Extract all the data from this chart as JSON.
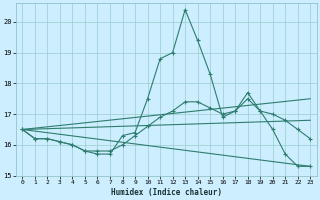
{
  "xlabel": "Humidex (Indice chaleur)",
  "background_color": "#cceeff",
  "grid_color": "#99cccc",
  "line_color": "#2e7d6e",
  "xlim": [
    -0.5,
    23.5
  ],
  "ylim": [
    15.0,
    20.6
  ],
  "yticks": [
    15,
    16,
    17,
    18,
    19,
    20
  ],
  "xticks": [
    0,
    1,
    2,
    3,
    4,
    5,
    6,
    7,
    8,
    9,
    10,
    11,
    12,
    13,
    14,
    15,
    16,
    17,
    18,
    19,
    20,
    21,
    22,
    23
  ],
  "line_spiky": {
    "x": [
      0,
      1,
      2,
      3,
      4,
      5,
      6,
      7,
      8,
      9,
      10,
      11,
      12,
      13,
      14,
      15,
      16,
      17,
      18,
      19,
      20,
      21,
      22,
      23
    ],
    "y": [
      16.5,
      16.2,
      16.2,
      16.1,
      16.0,
      15.8,
      15.7,
      15.7,
      16.3,
      16.4,
      17.5,
      18.8,
      19.0,
      20.4,
      19.4,
      18.3,
      16.9,
      17.1,
      17.7,
      17.1,
      16.5,
      15.7,
      15.3,
      15.3
    ],
    "markers": true
  },
  "line_upper": {
    "x": [
      0,
      23
    ],
    "y": [
      16.5,
      17.5
    ],
    "markers": false
  },
  "line_mid": {
    "x": [
      0,
      23
    ],
    "y": [
      16.5,
      16.8
    ],
    "markers": false
  },
  "line_lower": {
    "x": [
      0,
      23
    ],
    "y": [
      16.5,
      15.3
    ],
    "markers": false
  },
  "line_second": {
    "x": [
      0,
      1,
      2,
      3,
      4,
      5,
      6,
      7,
      8,
      9,
      10,
      11,
      12,
      13,
      14,
      15,
      16,
      17,
      18,
      19,
      20,
      21,
      22,
      23
    ],
    "y": [
      16.5,
      16.2,
      16.2,
      16.1,
      16.0,
      15.8,
      15.8,
      15.8,
      16.0,
      16.3,
      16.6,
      16.9,
      17.1,
      17.4,
      17.4,
      17.2,
      17.0,
      17.1,
      17.5,
      17.1,
      17.0,
      16.8,
      16.5,
      16.2
    ],
    "markers": true
  }
}
